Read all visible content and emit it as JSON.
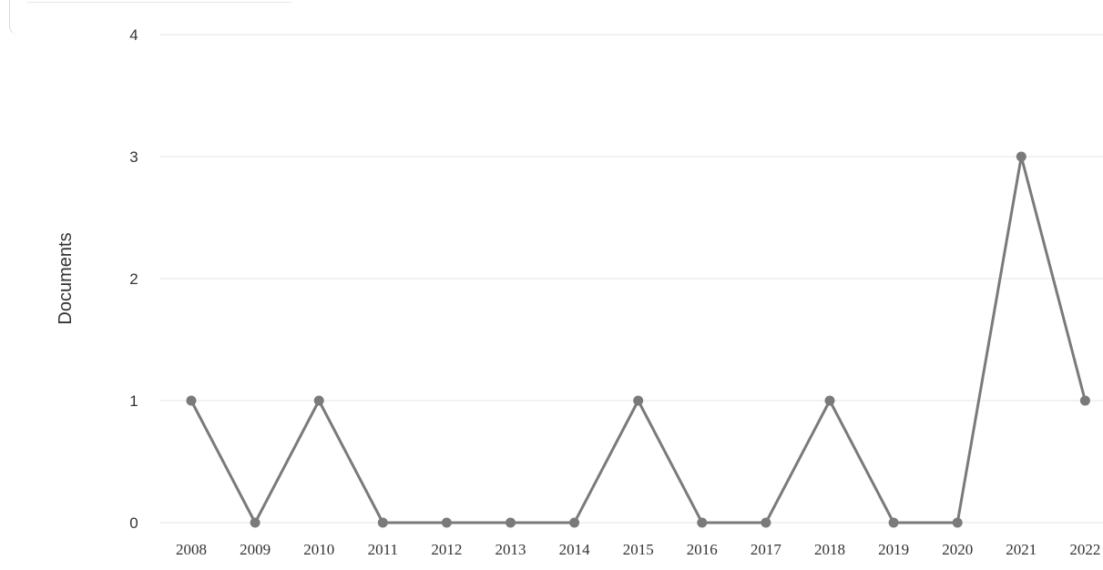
{
  "chart_data": {
    "type": "line",
    "title": "",
    "xlabel": "",
    "ylabel": "Documents",
    "categories": [
      "2008",
      "2009",
      "2010",
      "2011",
      "2012",
      "2013",
      "2014",
      "2015",
      "2016",
      "2017",
      "2018",
      "2019",
      "2020",
      "2021",
      "2022"
    ],
    "series": [
      {
        "values": [
          1,
          0,
          1,
          0,
          0,
          0,
          0,
          1,
          0,
          0,
          1,
          0,
          0,
          3,
          1
        ]
      }
    ],
    "ylim": [
      0,
      4
    ],
    "yticks": [
      "0",
      "1",
      "2",
      "3",
      "4"
    ],
    "grid": true,
    "colors": {
      "line": "#7a7a7a",
      "grid": "#e6e6e6",
      "text": "#333333"
    }
  }
}
